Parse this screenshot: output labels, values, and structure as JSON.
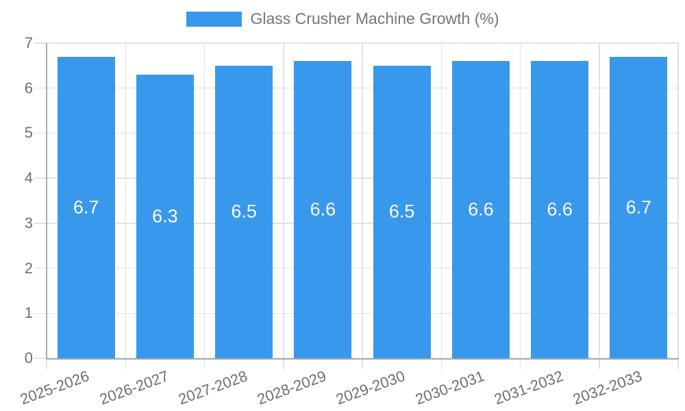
{
  "chart_data": {
    "type": "bar",
    "series_name": "Glass Crusher Machine Growth (%)",
    "categories": [
      "2025-2026",
      "2026-2027",
      "2027-2028",
      "2028-2029",
      "2029-2030",
      "2030-2031",
      "2031-2032",
      "2032-2033"
    ],
    "values": [
      6.7,
      6.3,
      6.5,
      6.6,
      6.5,
      6.6,
      6.6,
      6.7
    ],
    "value_labels": [
      "6.7",
      "6.3",
      "6.5",
      "6.6",
      "6.5",
      "6.6",
      "6.6",
      "6.7"
    ],
    "ylim": [
      0,
      7
    ],
    "yticks": [
      0,
      1,
      2,
      3,
      4,
      5,
      6,
      7
    ],
    "xlabel": "",
    "ylabel": "",
    "title": "",
    "legend_position": "top",
    "grid": true,
    "x_tick_rotation_deg": -20,
    "colors": {
      "bar": "#3898EC",
      "grid": "#E2E2E2",
      "axis": "#ABABAB",
      "tick_text": "#6E6E6E",
      "legend_text": "#757575",
      "value_label": "#FFFFFF",
      "background": "#FFFFFF"
    }
  }
}
